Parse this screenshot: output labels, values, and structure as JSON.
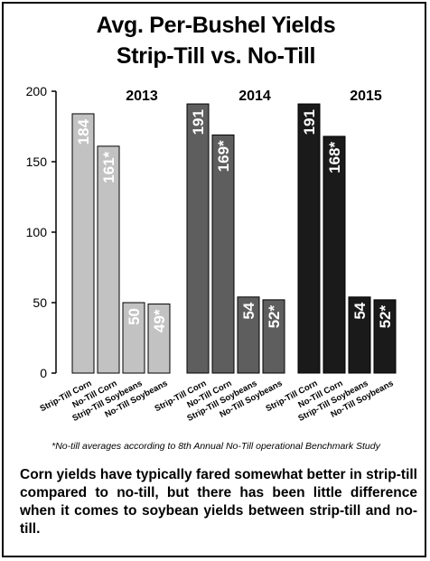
{
  "chart_data": {
    "type": "bar",
    "title": "Avg. Per-Bushel Yields",
    "subtitle": "Strip-Till vs. No-Till",
    "ylim": [
      0,
      200
    ],
    "yticks": [
      0,
      50,
      100,
      150,
      200
    ],
    "grid": false,
    "groups": [
      {
        "name": "2013",
        "color": "#c2c2c2",
        "bars": [
          {
            "category": "Strip-Till Corn",
            "value": 184,
            "label": "184"
          },
          {
            "category": "No-Till Corn",
            "value": 161,
            "label": "161*"
          },
          {
            "category": "Strip-Till Soybeans",
            "value": 50,
            "label": "50"
          },
          {
            "category": "No-Till Soybeans",
            "value": 49,
            "label": "49*"
          }
        ]
      },
      {
        "name": "2014",
        "color": "#5e5e5e",
        "bars": [
          {
            "category": "Strip-Till Corn",
            "value": 191,
            "label": "191"
          },
          {
            "category": "No-Till Corn",
            "value": 169,
            "label": "169*"
          },
          {
            "category": "Strip-Till Soybeans",
            "value": 54,
            "label": "54"
          },
          {
            "category": "No-Till Soybeans",
            "value": 52,
            "label": "52*"
          }
        ]
      },
      {
        "name": "2015",
        "color": "#1a1a1a",
        "bars": [
          {
            "category": "Strip-Till Corn",
            "value": 191,
            "label": "191"
          },
          {
            "category": "No-Till Corn",
            "value": 168,
            "label": "168*"
          },
          {
            "category": "Strip-Till Soybeans",
            "value": 54,
            "label": "54"
          },
          {
            "category": "No-Till Soybeans",
            "value": 52,
            "label": "52*"
          }
        ]
      }
    ]
  },
  "footnote": "*No-till averages according to 8th Annual No-Till operational Benchmark Study",
  "summary": "Corn yields have typically fared somewhat better in strip-till compared to no-till, but there has been little difference when it comes to soybean yields between strip-till and no-till."
}
